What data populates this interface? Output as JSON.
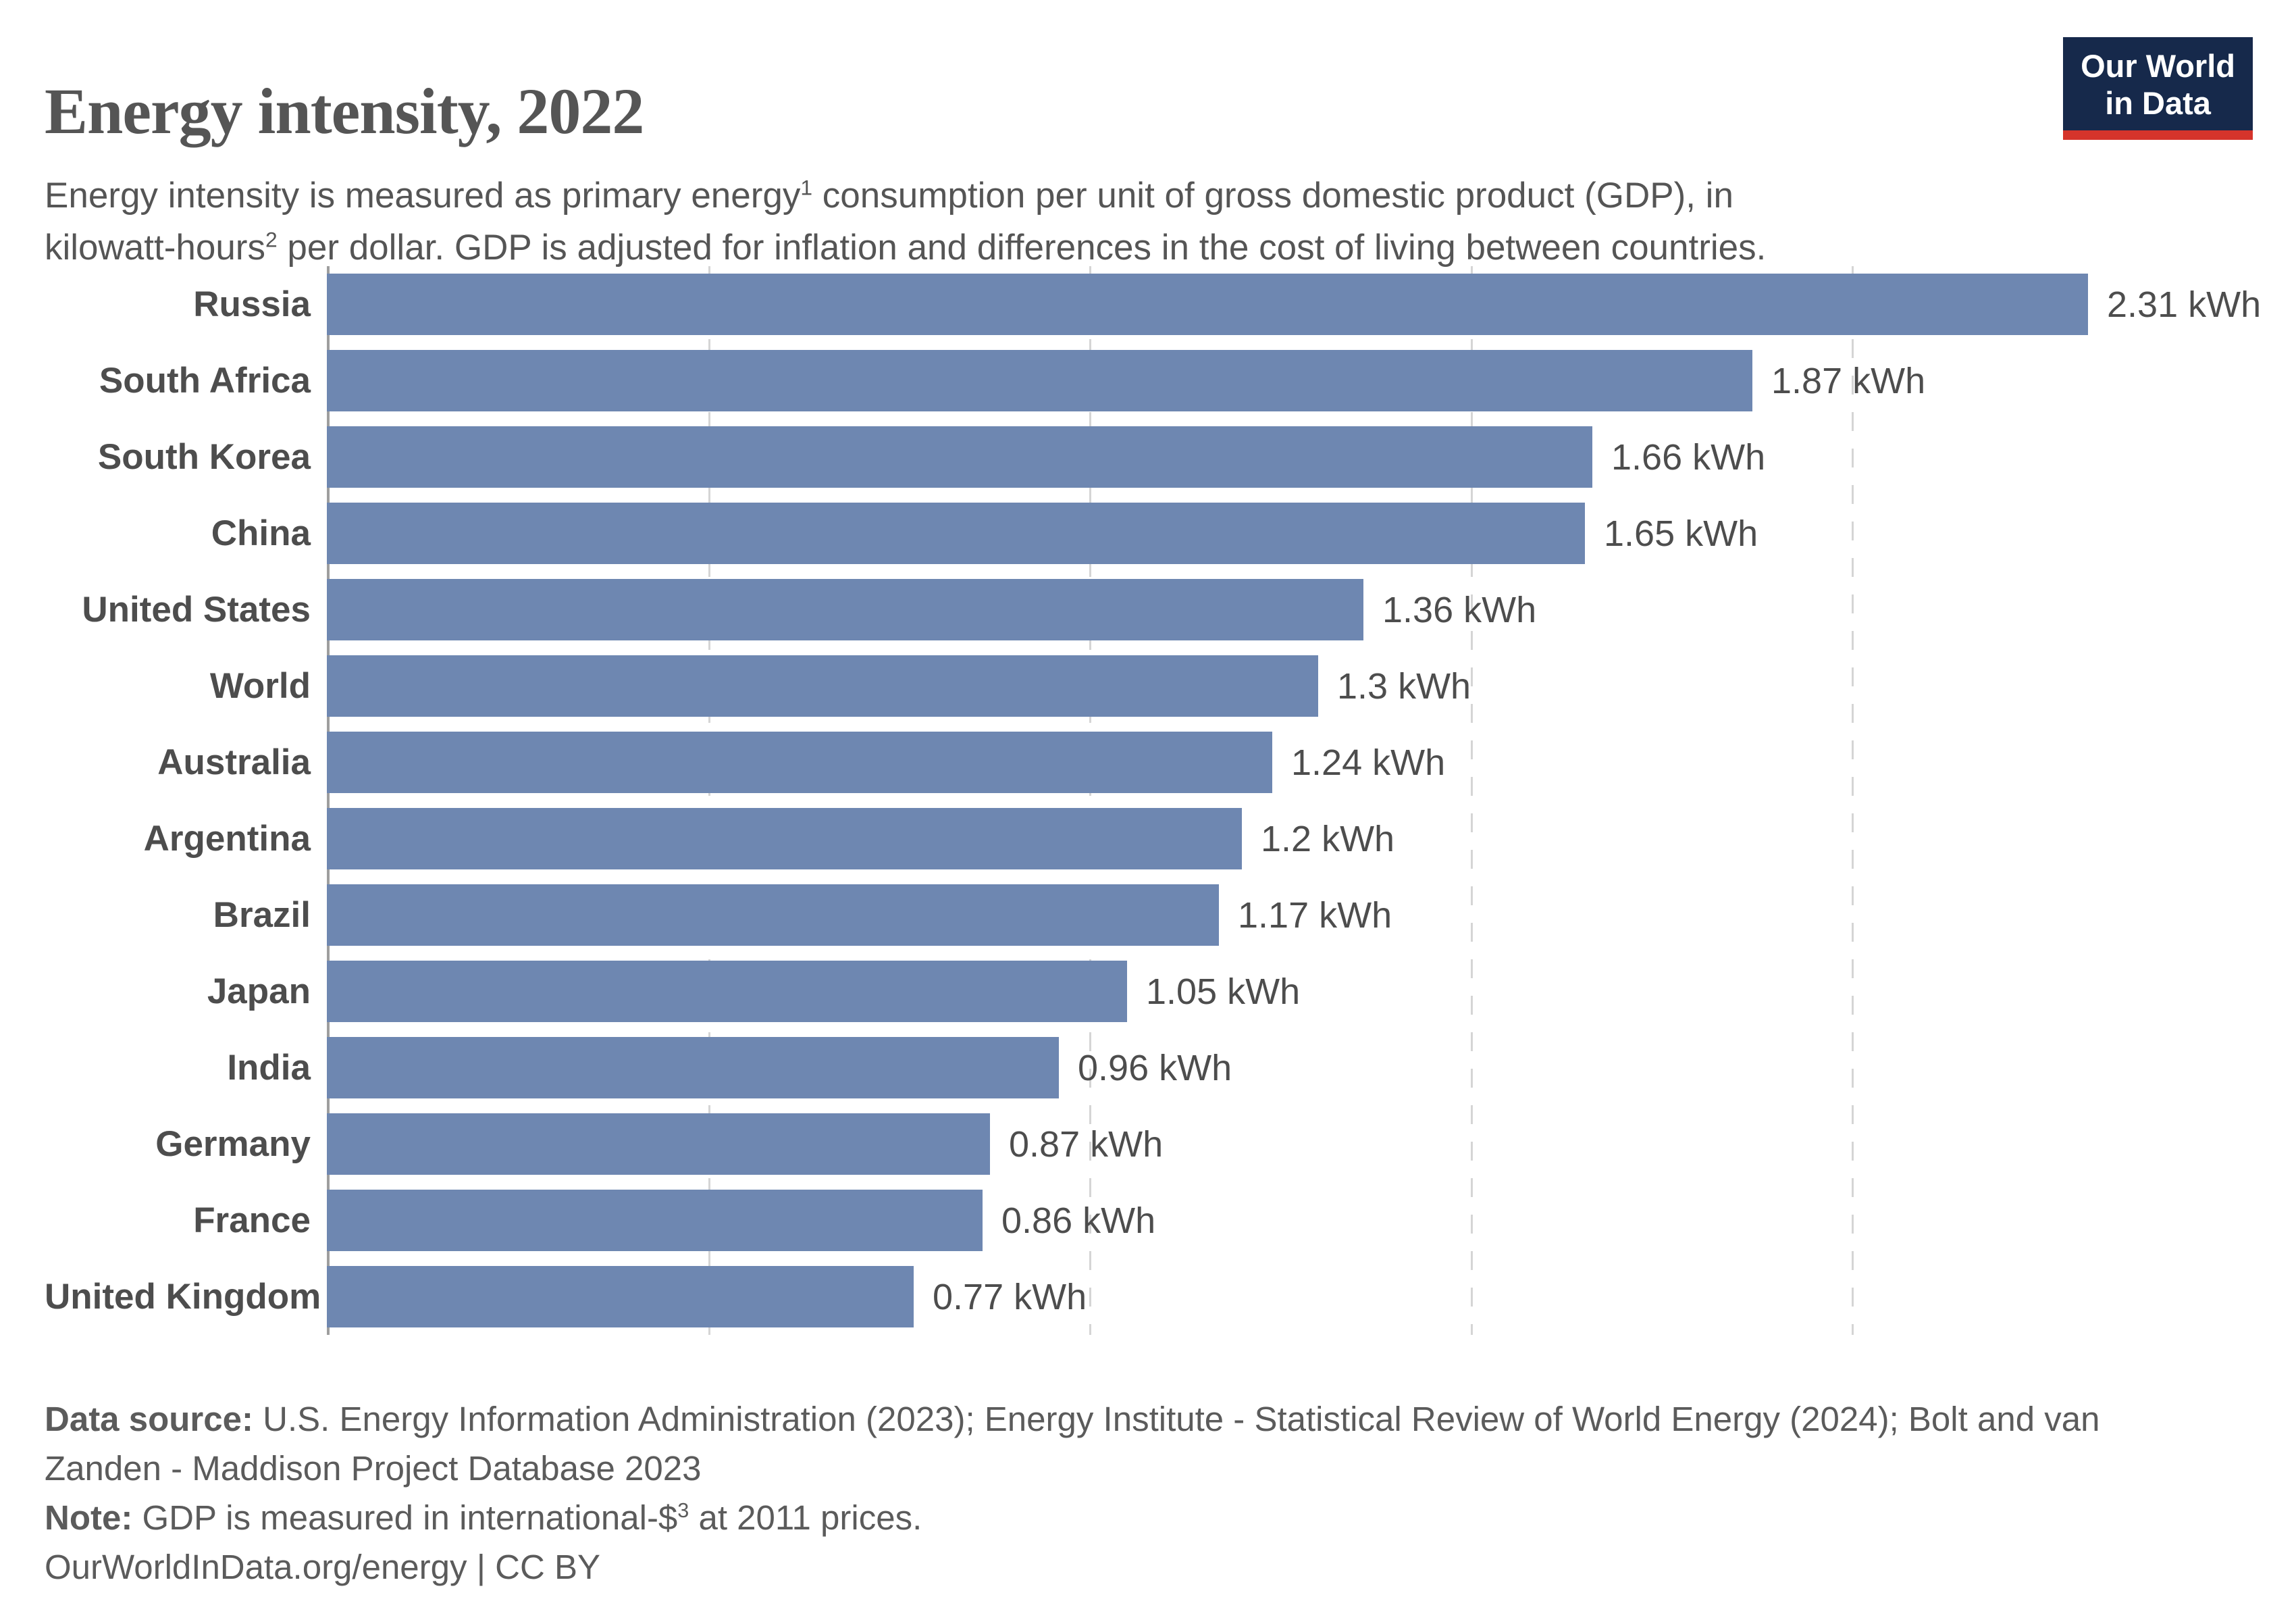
{
  "header": {
    "title": "Energy intensity, 2022",
    "subtitle_line1_pre": "Energy intensity is measured as primary energy",
    "subtitle_sup1": "1",
    "subtitle_line1_post": " consumption per unit of gross domestic product (GDP), in",
    "subtitle_line2_pre": "kilowatt-hours",
    "subtitle_sup2": "2",
    "subtitle_line2_post": " per dollar. GDP is adjusted for inflation and differences in the cost of living between countries.",
    "logo": {
      "line1": "Our World",
      "line2": "in Data",
      "bg_color": "#16294b",
      "accent_color": "#d5342b"
    }
  },
  "chart_data": {
    "type": "bar",
    "orientation": "horizontal",
    "unit": "kWh",
    "xlim": [
      0,
      2.31
    ],
    "gridlines": [
      0.5,
      1.0,
      1.5,
      2.0
    ],
    "grid_style": "dashed",
    "bar_color": "#6e87b1",
    "axis_color": "#9e9e9e",
    "rows": [
      {
        "name": "Russia",
        "value": 2.31,
        "label": "2.31 kWh"
      },
      {
        "name": "South Africa",
        "value": 1.87,
        "label": "1.87 kWh"
      },
      {
        "name": "South Korea",
        "value": 1.66,
        "label": "1.66 kWh"
      },
      {
        "name": "China",
        "value": 1.65,
        "label": "1.65 kWh"
      },
      {
        "name": "United States",
        "value": 1.36,
        "label": "1.36 kWh"
      },
      {
        "name": "World",
        "value": 1.3,
        "label": "1.3 kWh"
      },
      {
        "name": "Australia",
        "value": 1.24,
        "label": "1.24 kWh"
      },
      {
        "name": "Argentina",
        "value": 1.2,
        "label": "1.2 kWh"
      },
      {
        "name": "Brazil",
        "value": 1.17,
        "label": "1.17 kWh"
      },
      {
        "name": "Japan",
        "value": 1.05,
        "label": "1.05 kWh"
      },
      {
        "name": "India",
        "value": 0.96,
        "label": "0.96 kWh"
      },
      {
        "name": "Germany",
        "value": 0.87,
        "label": "0.87 kWh"
      },
      {
        "name": "France",
        "value": 0.86,
        "label": "0.86 kWh"
      },
      {
        "name": "United Kingdom",
        "value": 0.77,
        "label": "0.77 kWh"
      }
    ]
  },
  "footer": {
    "datasource_label": "Data source:",
    "datasource_line1": " U.S. Energy Information Administration (2023); Energy Institute - Statistical Review of World Energy (2024); Bolt and van",
    "datasource_line2": "Zanden - Maddison Project Database 2023",
    "note_label": "Note:",
    "note_pre": " GDP is measured in international-$",
    "note_sup": "3",
    "note_post": " at 2011 prices.",
    "citation": "OurWorldInData.org/energy | CC BY"
  }
}
